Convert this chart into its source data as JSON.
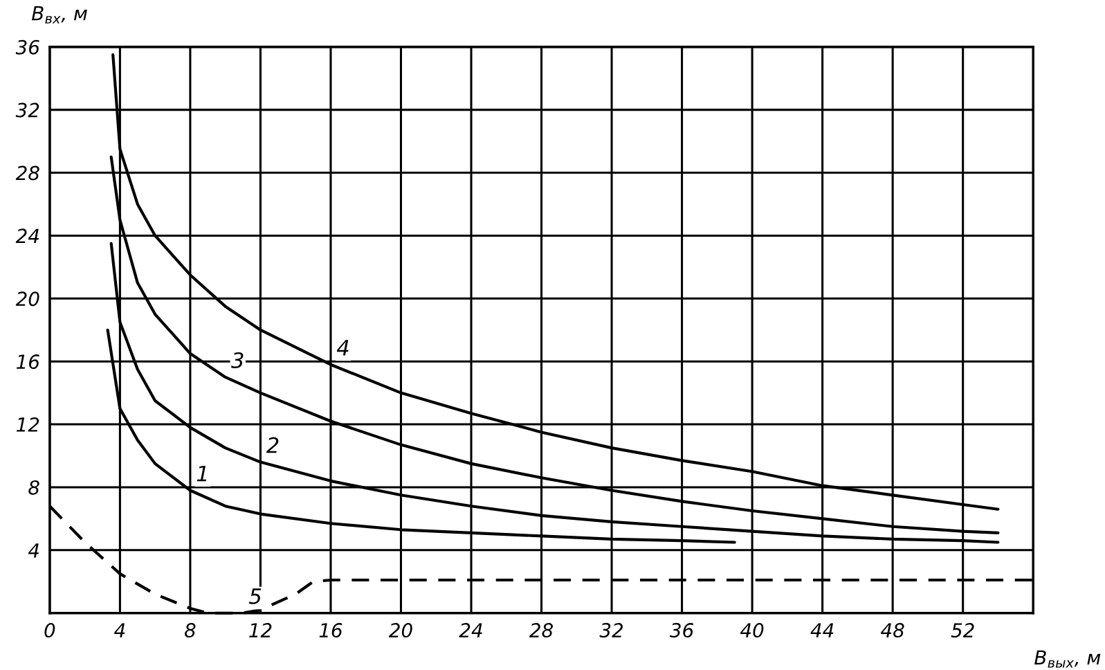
{
  "chart_data": {
    "type": "line",
    "xlabel": "B$_{вых}$, м",
    "ylabel": "B$_{вх}$, м",
    "xlim": [
      0,
      56
    ],
    "ylim": [
      0,
      36
    ],
    "xticks": [
      0,
      4,
      8,
      12,
      16,
      20,
      24,
      28,
      32,
      36,
      40,
      44,
      48,
      52
    ],
    "yticks": [
      {
        "value": 0,
        "label": null
      },
      4,
      8,
      12,
      16,
      20,
      24,
      28,
      32,
      36
    ],
    "grid": true,
    "line_style": "solid",
    "marker": "none",
    "series": [
      {
        "name": "1",
        "color": "#000000",
        "x": [
          3.3,
          4,
          5,
          6,
          8,
          10,
          12,
          16,
          20,
          24,
          28,
          32,
          36,
          39
        ],
        "values": [
          18,
          13,
          11,
          9.5,
          7.8,
          6.8,
          6.3,
          5.7,
          5.3,
          5.1,
          4.9,
          4.7,
          4.6,
          4.5
        ]
      },
      {
        "name": "2",
        "color": "#000000",
        "x": [
          3.5,
          4,
          5,
          6,
          8,
          10,
          12,
          16,
          20,
          24,
          28,
          32,
          36,
          40,
          44,
          48,
          52,
          54
        ],
        "values": [
          23.5,
          18.5,
          15.5,
          13.5,
          11.8,
          10.5,
          9.6,
          8.4,
          7.5,
          6.8,
          6.2,
          5.8,
          5.5,
          5.2,
          4.9,
          4.7,
          4.6,
          4.5
        ]
      },
      {
        "name": "3",
        "color": "#000000",
        "x": [
          3.5,
          4,
          5,
          6,
          8,
          10,
          12,
          16,
          20,
          24,
          28,
          32,
          36,
          40,
          44,
          48,
          52,
          54
        ],
        "values": [
          29,
          25,
          21,
          19,
          16.5,
          15,
          14,
          12.2,
          10.7,
          9.5,
          8.6,
          7.8,
          7.1,
          6.5,
          6,
          5.5,
          5.2,
          5.1
        ]
      },
      {
        "name": "4",
        "color": "#000000",
        "x": [
          3.6,
          4,
          5,
          6,
          8,
          10,
          12,
          16,
          20,
          24,
          28,
          32,
          36,
          40,
          44,
          48,
          52,
          54
        ],
        "values": [
          35.5,
          29.5,
          26,
          24,
          21.5,
          19.5,
          18,
          15.8,
          14,
          12.7,
          11.5,
          10.5,
          9.7,
          9,
          8.1,
          7.5,
          6.9,
          6.6
        ]
      },
      {
        "name": "5",
        "color": "#000000",
        "line_style": "dashed",
        "x": [
          0,
          2,
          4,
          6,
          8,
          9,
          11,
          12,
          14,
          15,
          16,
          56
        ],
        "values": [
          6.8,
          4.5,
          2.5,
          1.2,
          0.3,
          0,
          0,
          0.2,
          1.2,
          2,
          2.1,
          2.1
        ]
      }
    ]
  }
}
